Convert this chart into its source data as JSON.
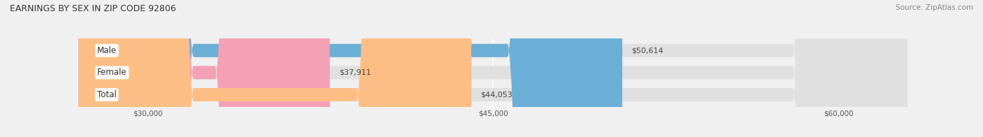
{
  "title": "EARNINGS BY SEX IN ZIP CODE 92806",
  "source": "Source: ZipAtlas.com",
  "categories": [
    "Male",
    "Female",
    "Total"
  ],
  "values": [
    50614,
    37911,
    44053
  ],
  "bar_colors": [
    "#6baed6",
    "#f4a0b5",
    "#fdbe85"
  ],
  "value_labels": [
    "$50,614",
    "$37,911",
    "$44,053"
  ],
  "xmin": 27000,
  "xmax": 63000,
  "xticks": [
    30000,
    45000,
    60000
  ],
  "xtick_labels": [
    "$30,000",
    "$45,000",
    "$60,000"
  ],
  "bar_height": 0.6,
  "background_color": "#f0f0f0",
  "title_fontsize": 9,
  "source_fontsize": 7.5,
  "label_fontsize": 8.5,
  "value_fontsize": 8
}
